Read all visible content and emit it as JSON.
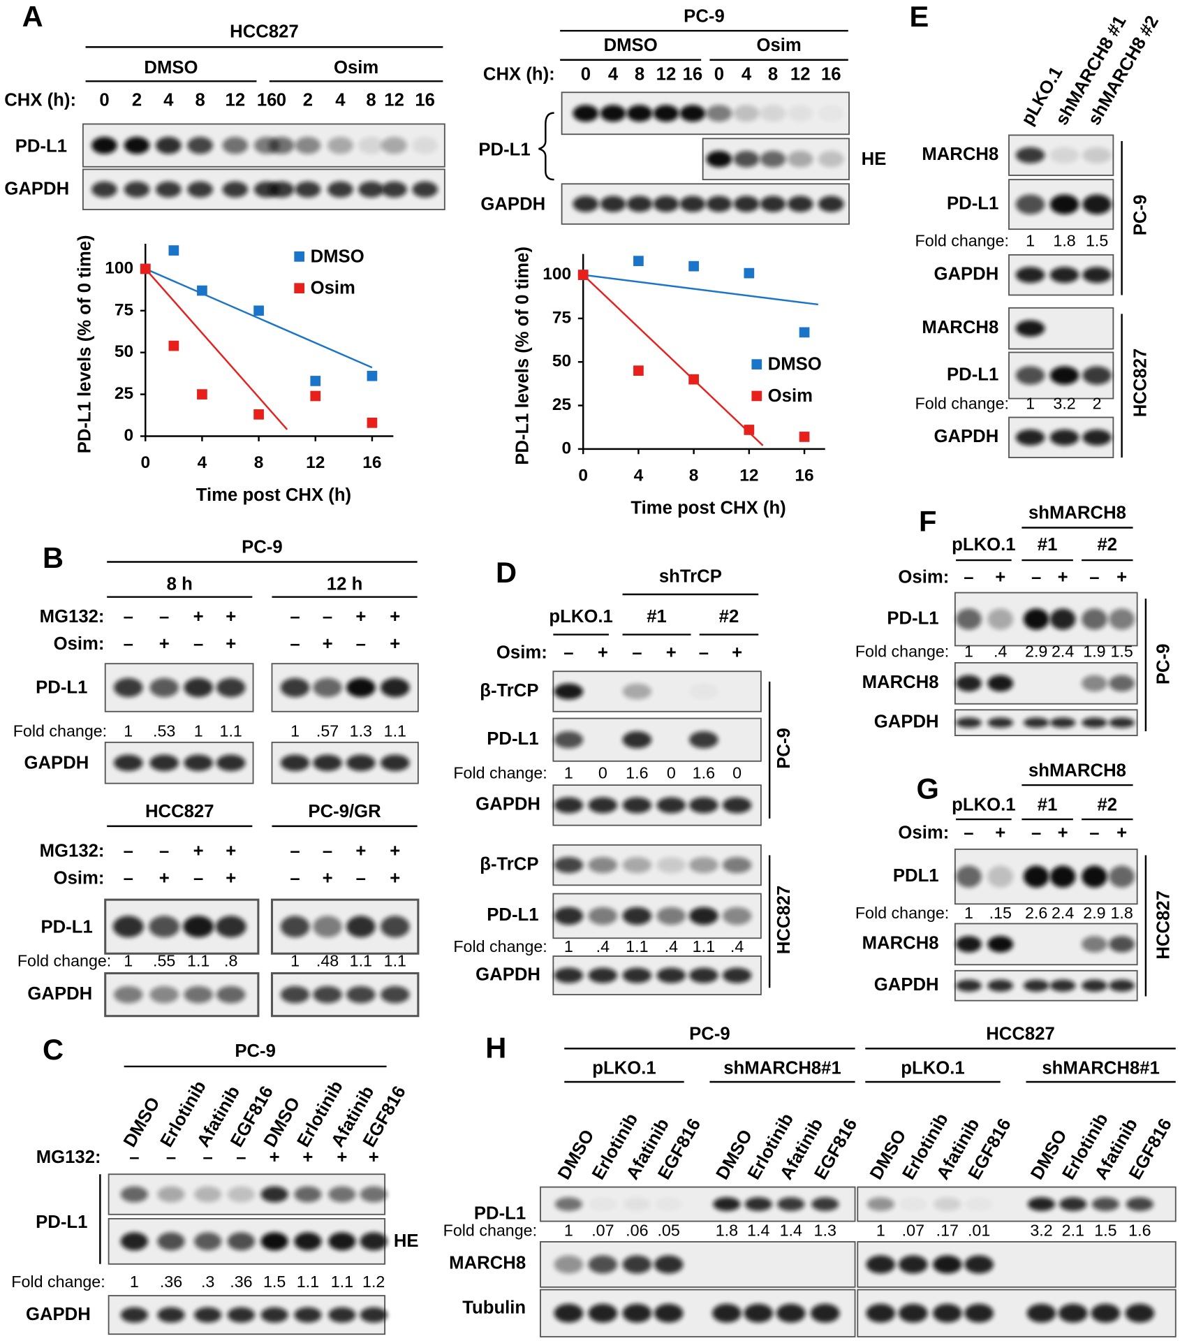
{
  "chart_data": [
    {
      "type": "scatter",
      "x": [
        0,
        2,
        4,
        8,
        12,
        16
      ],
      "series": [
        {
          "name": "DMSO",
          "color": "#1a75c9",
          "values": [
            100,
            111,
            87,
            75,
            33,
            36
          ],
          "trend": {
            "x": [
              0,
              16
            ],
            "values": [
              100,
              41
            ]
          }
        },
        {
          "name": "Osim",
          "color": "#e8201c",
          "values": [
            100,
            54,
            25,
            13,
            24,
            8
          ],
          "trend": {
            "x": [
              0,
              10
            ],
            "values": [
              100,
              4
            ]
          }
        }
      ],
      "y_label": "PD-L1 levels (% of 0 time)",
      "x_label": "Time post CHX (h)",
      "xlim": [
        0,
        17.5
      ],
      "ylim": [
        0,
        115
      ],
      "xticks": [
        0,
        4,
        8,
        12,
        16
      ],
      "yticks": [
        0,
        25,
        50,
        75,
        100
      ],
      "grid": false,
      "legend": "upper right"
    },
    {
      "type": "scatter",
      "x": [
        0,
        4,
        8,
        12,
        16
      ],
      "series": [
        {
          "name": "DMSO",
          "color": "#1a75c9",
          "values": [
            100,
            108,
            105,
            101,
            67
          ],
          "trend": {
            "x": [
              0,
              17
            ],
            "values": [
              100,
              83
            ]
          }
        },
        {
          "name": "Osim",
          "color": "#e8201c",
          "values": [
            100,
            45,
            40,
            11,
            7
          ],
          "trend": {
            "x": [
              0,
              13
            ],
            "values": [
              100,
              2
            ]
          }
        }
      ],
      "y_label": "PD-L1 levels (% of 0 time)",
      "x_label": "Time post CHX (h)",
      "xlim": [
        0,
        17.5
      ],
      "ylim": [
        0,
        112
      ],
      "xticks": [
        0,
        4,
        8,
        12,
        16
      ],
      "yticks": [
        0,
        25,
        50,
        75,
        100
      ],
      "grid": false,
      "legend": "lower right"
    }
  ],
  "figure": {
    "panel_labels": [
      "A",
      "B",
      "C",
      "D",
      "E",
      "F",
      "G",
      "H"
    ],
    "A_hcc827": {
      "title": "HCC827",
      "groups": [
        "DMSO",
        "Osim"
      ],
      "lane_label": "CHX (h):",
      "lanes": [
        "0",
        "2",
        "4",
        "8",
        "12",
        "16",
        "0",
        "2",
        "4",
        "8",
        "12",
        "16"
      ],
      "rows": [
        "PD-L1",
        "GAPDH"
      ]
    },
    "A_pc9": {
      "title": "PC-9",
      "groups": [
        "DMSO",
        "Osim"
      ],
      "lane_label": "CHX (h):",
      "lanes": [
        "0",
        "4",
        "8",
        "12",
        "16",
        "0",
        "4",
        "8",
        "12",
        "16"
      ],
      "rows": [
        "PD-L1",
        "GAPDH"
      ],
      "he": "HE"
    },
    "B_pc9": {
      "title": "PC-9",
      "groups": [
        "8 h",
        "12 h"
      ],
      "treatments": [
        "MG132:",
        "Osim:"
      ],
      "signs": [
        [
          "–",
          "–",
          "+",
          "+",
          "–",
          "–",
          "+",
          "+"
        ],
        [
          "–",
          "+",
          "–",
          "+",
          "–",
          "+",
          "–",
          "+"
        ]
      ],
      "rows": [
        "PD-L1",
        "GAPDH"
      ],
      "fold_label": "Fold change:",
      "fold": [
        "1",
        ".53",
        "1",
        "1.1",
        "1",
        ".57",
        "1.3",
        "1.1"
      ]
    },
    "B_lower": {
      "groups": [
        "HCC827",
        "PC-9/GR"
      ],
      "treatments": [
        "MG132:",
        "Osim:"
      ],
      "signs": [
        [
          "–",
          "–",
          "+",
          "+",
          "–",
          "–",
          "+",
          "+"
        ],
        [
          "–",
          "+",
          "–",
          "+",
          "–",
          "+",
          "–",
          "+"
        ]
      ],
      "rows": [
        "PD-L1",
        "GAPDH"
      ],
      "fold_label": "Fold change:",
      "fold": [
        "1",
        ".55",
        "1.1",
        ".8",
        "1",
        ".48",
        "1.1",
        "1.1"
      ]
    },
    "C": {
      "title": "PC-9",
      "lanes": [
        "DMSO",
        "Erlotinib",
        "Afatinib",
        "EGF816",
        "DMSO",
        "Erlotinib",
        "Afatinib",
        "EGF816"
      ],
      "treatments": [
        "MG132:"
      ],
      "signs": [
        [
          "–",
          "–",
          "–",
          "–",
          "+",
          "+",
          "+",
          "+"
        ]
      ],
      "rows": [
        "PD-L1",
        "GAPDH"
      ],
      "he": "HE",
      "fold_label": "Fold change:",
      "fold": [
        "1",
        ".36",
        ".3",
        ".36",
        "1.5",
        "1.1",
        "1.1",
        "1.2"
      ]
    },
    "D": {
      "title": "shTrCP",
      "groups": [
        "pLKO.1",
        "#1",
        "#2"
      ],
      "treatments": [
        "Osim:"
      ],
      "signs": [
        [
          "–",
          "+",
          "–",
          "+",
          "–",
          "+"
        ]
      ],
      "cell_lines": [
        "PC-9",
        "HCC827"
      ],
      "rows": [
        "β-TrCP",
        "PD-L1",
        "GAPDH"
      ],
      "fold_label": "Fold change:",
      "fold": [
        [
          "1",
          "0",
          "1.6",
          "0",
          "1.6",
          "0"
        ],
        [
          "1",
          ".4",
          "1.1",
          ".4",
          "1.1",
          ".4"
        ]
      ]
    },
    "E": {
      "lanes": [
        "pLKO.1",
        "shMARCH8 #1",
        "shMARCH8 #2"
      ],
      "cell_lines": [
        "PC-9",
        "HCC827"
      ],
      "rows": [
        "MARCH8",
        "PD-L1",
        "GAPDH"
      ],
      "fold_label": "Fold change:",
      "fold": [
        [
          "1",
          "1.8",
          "1.5"
        ],
        [
          "1",
          "3.2",
          "2"
        ]
      ]
    },
    "F": {
      "title": "shMARCH8",
      "groups": [
        "pLKO.1",
        "#1",
        "#2"
      ],
      "treatments": [
        "Osim:"
      ],
      "signs": [
        [
          "–",
          "+",
          "–",
          "+",
          "–",
          "+"
        ]
      ],
      "cell_line": "PC-9",
      "rows": [
        "PD-L1",
        "MARCH8",
        "GAPDH"
      ],
      "fold_label": "Fold change:",
      "fold": [
        "1",
        ".4",
        "2.9",
        "2.4",
        "1.9",
        "1.5"
      ]
    },
    "G": {
      "title": "shMARCH8",
      "groups": [
        "pLKO.1",
        "#1",
        "#2"
      ],
      "treatments": [
        "Osim:"
      ],
      "signs": [
        [
          "–",
          "+",
          "–",
          "+",
          "–",
          "+"
        ]
      ],
      "cell_line": "HCC827",
      "rows": [
        "PDL1",
        "MARCH8",
        "GAPDH"
      ],
      "fold_label": "Fold change:",
      "fold": [
        "1",
        ".15",
        "2.6",
        "2.4",
        "2.9",
        "1.8"
      ]
    },
    "H": {
      "cell_lines": [
        {
          "name": "PC-9",
          "groups": [
            "pLKO.1",
            "shMARCH8#1"
          ],
          "fold": [
            "1",
            ".07",
            ".06",
            ".05",
            "1.8",
            "1.4",
            "1.4",
            "1.3"
          ]
        },
        {
          "name": "HCC827",
          "groups": [
            "pLKO.1",
            "shMARCH8#1"
          ],
          "fold": [
            "1",
            ".07",
            ".17",
            ".01",
            "3.2",
            "2.1",
            "1.5",
            "1.6"
          ]
        }
      ],
      "lanes": [
        "DMSO",
        "Erlotinib",
        "Afatinib",
        "EGF816"
      ],
      "rows": [
        "PD-L1",
        "MARCH8",
        "Tubulin"
      ],
      "fold_label": "Fold change:"
    }
  }
}
